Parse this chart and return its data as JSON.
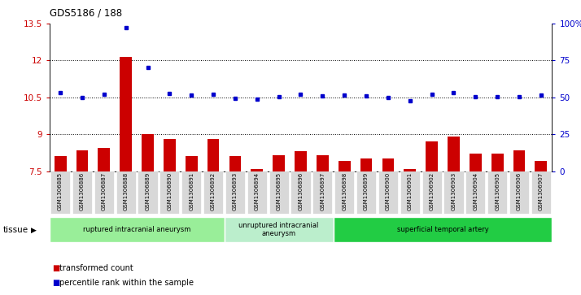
{
  "title": "GDS5186 / 188",
  "samples": [
    "GSM1306885",
    "GSM1306886",
    "GSM1306887",
    "GSM1306888",
    "GSM1306889",
    "GSM1306890",
    "GSM1306891",
    "GSM1306892",
    "GSM1306893",
    "GSM1306894",
    "GSM1306895",
    "GSM1306896",
    "GSM1306897",
    "GSM1306898",
    "GSM1306899",
    "GSM1306900",
    "GSM1306901",
    "GSM1306902",
    "GSM1306903",
    "GSM1306904",
    "GSM1306905",
    "GSM1306906",
    "GSM1306907"
  ],
  "bar_values": [
    8.1,
    8.35,
    8.45,
    12.15,
    9.0,
    8.8,
    8.1,
    8.8,
    8.1,
    7.6,
    8.15,
    8.3,
    8.15,
    7.9,
    8.0,
    8.0,
    7.6,
    8.7,
    8.9,
    8.2,
    8.2,
    8.35,
    7.9
  ],
  "dot_values": [
    10.68,
    10.5,
    10.62,
    13.32,
    11.73,
    10.65,
    10.6,
    10.62,
    10.45,
    10.42,
    10.52,
    10.61,
    10.55,
    10.58,
    10.56,
    10.49,
    10.37,
    10.64,
    10.7,
    10.52,
    10.54,
    10.53,
    10.58
  ],
  "ylim_left": [
    7.5,
    13.5
  ],
  "ylim_right": [
    0,
    100
  ],
  "yticks_left": [
    7.5,
    9.0,
    10.5,
    12.0,
    13.5
  ],
  "ytick_labels_left": [
    "7.5",
    "9",
    "10.5",
    "12",
    "13.5"
  ],
  "yticks_right": [
    0,
    25,
    50,
    75,
    100
  ],
  "ytick_labels_right": [
    "0",
    "25",
    "50",
    "75",
    "100%"
  ],
  "hlines": [
    9.0,
    10.5,
    12.0
  ],
  "bar_color": "#cc0000",
  "dot_color": "#0000cc",
  "bar_bottom": 7.5,
  "groups": [
    {
      "label": "ruptured intracranial aneurysm",
      "start": 0,
      "end": 8,
      "color": "#99ee99"
    },
    {
      "label": "unruptured intracranial\naneurysm",
      "start": 8,
      "end": 13,
      "color": "#bbeecc"
    },
    {
      "label": "superficial temporal artery",
      "start": 13,
      "end": 23,
      "color": "#22cc44"
    }
  ],
  "tissue_label": "tissue",
  "bg_color": "#ffffff",
  "tick_bg_color": "#dddddd"
}
